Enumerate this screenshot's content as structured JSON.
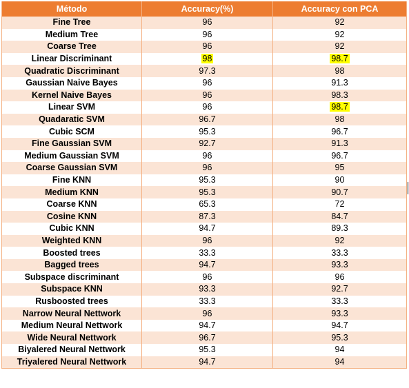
{
  "headers": [
    "Método",
    "Accuracy(%)",
    "Accuracy con PCA"
  ],
  "rows": [
    {
      "method": "Fine Tree",
      "acc": "96",
      "pca": "92",
      "hl_acc": false,
      "hl_pca": false
    },
    {
      "method": "Medium Tree",
      "acc": "96",
      "pca": "92",
      "hl_acc": false,
      "hl_pca": false
    },
    {
      "method": "Coarse Tree",
      "acc": "96",
      "pca": "92",
      "hl_acc": false,
      "hl_pca": false
    },
    {
      "method": "Linear Discriminant",
      "acc": "98",
      "pca": "98.7",
      "hl_acc": true,
      "hl_pca": true
    },
    {
      "method": "Quadratic Discriminant",
      "acc": "97.3",
      "pca": "98",
      "hl_acc": false,
      "hl_pca": false
    },
    {
      "method": "Gaussian Naive Bayes",
      "acc": "96",
      "pca": "91.3",
      "hl_acc": false,
      "hl_pca": false
    },
    {
      "method": "Kernel Naive Bayes",
      "acc": "96",
      "pca": "98.3",
      "hl_acc": false,
      "hl_pca": false
    },
    {
      "method": "Linear SVM",
      "acc": "96",
      "pca": "98.7",
      "hl_acc": false,
      "hl_pca": true
    },
    {
      "method": "Quadaratic SVM",
      "acc": "96.7",
      "pca": "98",
      "hl_acc": false,
      "hl_pca": false
    },
    {
      "method": "Cubic SCM",
      "acc": "95.3",
      "pca": "96.7",
      "hl_acc": false,
      "hl_pca": false
    },
    {
      "method": "Fine Gaussian SVM",
      "acc": "92.7",
      "pca": "91.3",
      "hl_acc": false,
      "hl_pca": false
    },
    {
      "method": "Medium Gaussian SVM",
      "acc": "96",
      "pca": "96.7",
      "hl_acc": false,
      "hl_pca": false
    },
    {
      "method": "Coarse Gaussian SVM",
      "acc": "96",
      "pca": "95",
      "hl_acc": false,
      "hl_pca": false
    },
    {
      "method": "Fine KNN",
      "acc": "95.3",
      "pca": "90",
      "hl_acc": false,
      "hl_pca": false
    },
    {
      "method": "Medium KNN",
      "acc": "95.3",
      "pca": "90.7",
      "hl_acc": false,
      "hl_pca": false
    },
    {
      "method": "Coarse KNN",
      "acc": "65.3",
      "pca": "72",
      "hl_acc": false,
      "hl_pca": false
    },
    {
      "method": "Cosine KNN",
      "acc": "87.3",
      "pca": "84.7",
      "hl_acc": false,
      "hl_pca": false
    },
    {
      "method": "Cubic KNN",
      "acc": "94.7",
      "pca": "89.3",
      "hl_acc": false,
      "hl_pca": false
    },
    {
      "method": "Weighted KNN",
      "acc": "96",
      "pca": "92",
      "hl_acc": false,
      "hl_pca": false
    },
    {
      "method": "Boosted trees",
      "acc": "33.3",
      "pca": "33.3",
      "hl_acc": false,
      "hl_pca": false
    },
    {
      "method": "Bagged trees",
      "acc": "94.7",
      "pca": "93.3",
      "hl_acc": false,
      "hl_pca": false
    },
    {
      "method": "Subspace discriminant",
      "acc": "96",
      "pca": "96",
      "hl_acc": false,
      "hl_pca": false
    },
    {
      "method": "Subspace KNN",
      "acc": "93.3",
      "pca": "92.7",
      "hl_acc": false,
      "hl_pca": false
    },
    {
      "method": "Rusboosted trees",
      "acc": "33.3",
      "pca": "33.3",
      "hl_acc": false,
      "hl_pca": false
    },
    {
      "method": "Narrow Neural Nettwork",
      "acc": "96",
      "pca": "93.3",
      "hl_acc": false,
      "hl_pca": false
    },
    {
      "method": "Medium Neural Nettwork",
      "acc": "94.7",
      "pca": "94.7",
      "hl_acc": false,
      "hl_pca": false
    },
    {
      "method": "Wide Neural Nettwork",
      "acc": "96.7",
      "pca": "95.3",
      "hl_acc": false,
      "hl_pca": false
    },
    {
      "method": "Biyalered Neural Nettwork",
      "acc": "95.3",
      "pca": "94",
      "hl_acc": false,
      "hl_pca": false
    },
    {
      "method": "Triyalered Neural Nettwork",
      "acc": "94.7",
      "pca": "94",
      "hl_acc": false,
      "hl_pca": false
    }
  ],
  "colors": {
    "header_bg": "#ED7D31",
    "band": "#FBE4D5",
    "highlight": "#FFFF00"
  }
}
